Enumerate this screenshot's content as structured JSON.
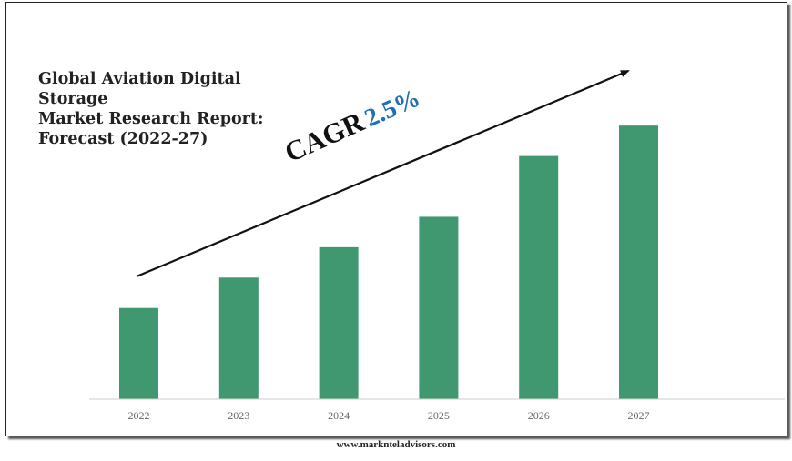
{
  "chart_data": {
    "type": "bar",
    "title": [
      "Global Aviation Digital Storage",
      "Market Research Report:",
      "Forecast (2022-27)"
    ],
    "categories": [
      "2022",
      "2023",
      "2024",
      "2025",
      "2026",
      "2027"
    ],
    "values": [
      30,
      40,
      50,
      60,
      80,
      90
    ],
    "ylim": [
      0,
      100
    ],
    "xlabel": "",
    "ylabel": "",
    "annotation": {
      "label": "CAGR",
      "value": "2.5%"
    },
    "bar_color": "#3f9870"
  },
  "footer": {
    "url": "www.marknteladvisors.com"
  }
}
